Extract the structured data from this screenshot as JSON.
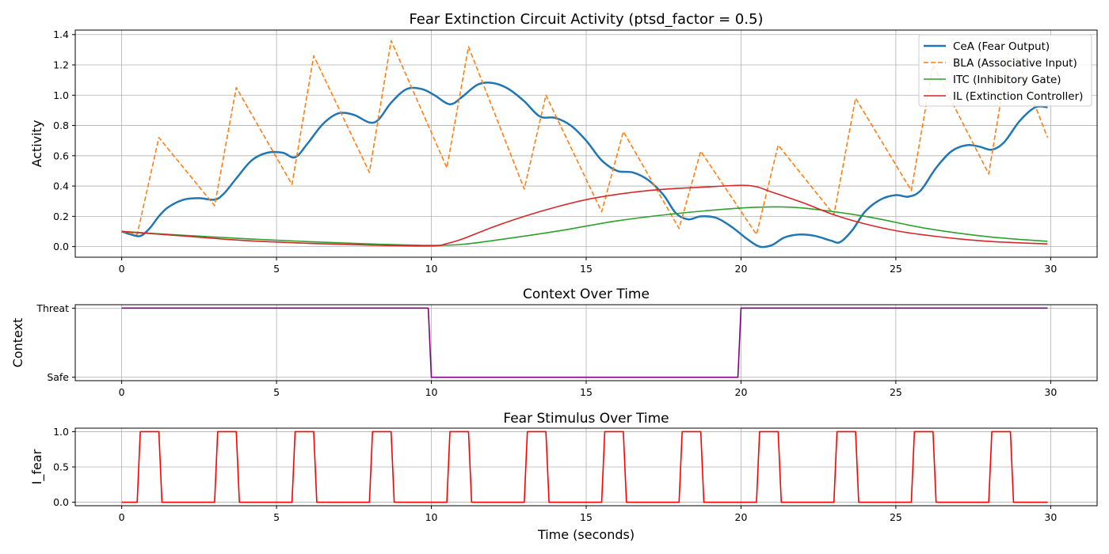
{
  "figure": {
    "width": 1400,
    "height": 700
  },
  "chart_data": [
    {
      "type": "line",
      "title": "Fear Extinction Circuit Activity (ptsd_factor = 0.5)",
      "xlabel": "",
      "ylabel": "Activity",
      "xlim": [
        -1.5,
        31.5
      ],
      "ylim": [
        -0.07,
        1.43
      ],
      "xticks": [
        0,
        5,
        10,
        15,
        20,
        25,
        30
      ],
      "yticks": [
        0.0,
        0.2,
        0.4,
        0.6,
        0.8,
        1.0,
        1.2,
        1.4
      ],
      "ytick_labels": [
        "0.0",
        "0.2",
        "0.4",
        "0.6",
        "0.8",
        "1.0",
        "1.2",
        "1.4"
      ],
      "grid": true,
      "legend_position": "top-right",
      "series": [
        {
          "name": "CeA (Fear Output)",
          "color": "#1f77b4",
          "style": "solid",
          "width": 2.5,
          "x": [
            0,
            0.3,
            0.6,
            0.9,
            1.2,
            1.5,
            2.0,
            2.5,
            3.0,
            3.3,
            3.7,
            4.2,
            4.7,
            5.2,
            5.6,
            6.0,
            6.5,
            7.0,
            7.5,
            8.0,
            8.3,
            8.7,
            9.2,
            9.7,
            10.1,
            10.6,
            11.0,
            11.5,
            12.0,
            12.5,
            13.0,
            13.5,
            14.0,
            14.5,
            15.0,
            15.5,
            16.0,
            16.5,
            17.0,
            17.5,
            17.9,
            18.3,
            18.7,
            19.2,
            19.7,
            20.2,
            20.6,
            21.0,
            21.4,
            21.9,
            22.4,
            22.9,
            23.2,
            23.6,
            24.0,
            24.5,
            25.0,
            25.4,
            25.8,
            26.3,
            26.8,
            27.3,
            27.7,
            28.1,
            28.5,
            29.0,
            29.5,
            29.9
          ],
          "y": [
            0.1,
            0.08,
            0.07,
            0.12,
            0.2,
            0.26,
            0.31,
            0.32,
            0.31,
            0.35,
            0.45,
            0.57,
            0.62,
            0.62,
            0.59,
            0.68,
            0.81,
            0.88,
            0.87,
            0.82,
            0.84,
            0.95,
            1.04,
            1.04,
            1.0,
            0.94,
            0.99,
            1.07,
            1.08,
            1.04,
            0.96,
            0.86,
            0.85,
            0.8,
            0.7,
            0.57,
            0.5,
            0.49,
            0.44,
            0.34,
            0.22,
            0.18,
            0.2,
            0.19,
            0.13,
            0.05,
            0.0,
            0.01,
            0.06,
            0.08,
            0.07,
            0.04,
            0.03,
            0.11,
            0.23,
            0.31,
            0.34,
            0.33,
            0.37,
            0.52,
            0.63,
            0.67,
            0.66,
            0.64,
            0.69,
            0.83,
            0.92,
            0.92
          ]
        },
        {
          "name": "BLA (Associative Input)",
          "color": "#ff7f0e",
          "style": "dashed",
          "width": 1.6,
          "x": [
            0,
            0.5,
            1.2,
            3.0,
            3.7,
            5.5,
            6.2,
            8.0,
            8.7,
            10.5,
            11.2,
            13.0,
            13.7,
            15.5,
            16.2,
            18.0,
            18.7,
            20.5,
            21.2,
            23.0,
            23.7,
            25.5,
            26.2,
            28.0,
            28.7,
            29.9
          ],
          "y": [
            0.1,
            0.08,
            0.72,
            0.27,
            1.05,
            0.41,
            1.26,
            0.49,
            1.36,
            0.52,
            1.32,
            0.38,
            1.0,
            0.23,
            0.76,
            0.12,
            0.63,
            0.08,
            0.67,
            0.21,
            0.98,
            0.37,
            1.2,
            0.48,
            1.35,
            0.72
          ]
        },
        {
          "name": "ITC (Inhibitory Gate)",
          "color": "#2ca02c",
          "style": "solid",
          "width": 1.6,
          "x": [
            0,
            2,
            4,
            6,
            8,
            10,
            11,
            12,
            14,
            16,
            18,
            20,
            21,
            22,
            24,
            26,
            28,
            29.9
          ],
          "y": [
            0.1,
            0.075,
            0.052,
            0.033,
            0.018,
            0.008,
            0.015,
            0.04,
            0.1,
            0.17,
            0.22,
            0.255,
            0.262,
            0.255,
            0.2,
            0.12,
            0.065,
            0.035
          ]
        },
        {
          "name": "IL (Extinction Controller)",
          "color": "#d62728",
          "style": "solid",
          "width": 1.6,
          "x": [
            0,
            2,
            4,
            6,
            8,
            10,
            10.5,
            11,
            12,
            13,
            14,
            15,
            16,
            17,
            18,
            19,
            20,
            20.5,
            21,
            22,
            23,
            24,
            25,
            26,
            27,
            28,
            29,
            29.9
          ],
          "y": [
            0.1,
            0.07,
            0.04,
            0.022,
            0.01,
            0.005,
            0.02,
            0.05,
            0.13,
            0.2,
            0.26,
            0.31,
            0.345,
            0.37,
            0.385,
            0.395,
            0.405,
            0.395,
            0.36,
            0.29,
            0.21,
            0.15,
            0.105,
            0.075,
            0.052,
            0.035,
            0.025,
            0.018
          ]
        }
      ]
    },
    {
      "type": "line",
      "title": "Context Over Time",
      "xlabel": "",
      "ylabel": "Context",
      "xlim": [
        -1.5,
        31.5
      ],
      "ylim": [
        -0.05,
        1.05
      ],
      "xticks": [
        0,
        5,
        10,
        15,
        20,
        25,
        30
      ],
      "yticks": [
        0,
        1
      ],
      "ytick_labels": [
        "Safe",
        "Threat"
      ],
      "grid": true,
      "series": [
        {
          "name": "",
          "color": "#800080",
          "style": "solid",
          "width": 1.6,
          "x": [
            0,
            9.9,
            10.0,
            19.9,
            20.0,
            29.9
          ],
          "y": [
            1,
            1,
            0,
            0,
            1,
            1
          ]
        }
      ]
    },
    {
      "type": "line",
      "title": "Fear Stimulus Over Time",
      "xlabel": "Time (seconds)",
      "ylabel": "I_fear",
      "xlim": [
        -1.5,
        31.5
      ],
      "ylim": [
        -0.05,
        1.05
      ],
      "xticks": [
        0,
        5,
        10,
        15,
        20,
        25,
        30
      ],
      "yticks": [
        0.0,
        0.5,
        1.0
      ],
      "ytick_labels": [
        "0.0",
        "0.5",
        "1.0"
      ],
      "grid": true,
      "pulse_starts": [
        0.5,
        3.0,
        5.5,
        8.0,
        10.5,
        13.0,
        15.5,
        18.0,
        20.5,
        23.0,
        25.5,
        28.0
      ],
      "pulse_ramp": 0.1,
      "pulse_top": 0.6,
      "x_end": 29.9,
      "series": [
        {
          "name": "",
          "color": "#ff0000",
          "style": "solid",
          "width": 1.6
        }
      ]
    }
  ]
}
